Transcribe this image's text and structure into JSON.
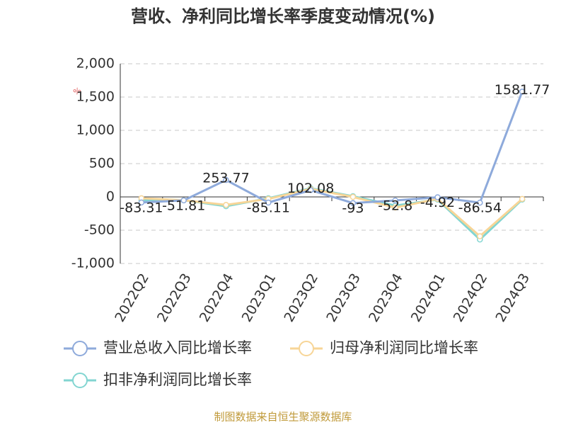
{
  "chart_data": {
    "type": "line",
    "title": "营收、净利同比增长率季度变动情况(%)",
    "y_unit": "%",
    "source": "制图数据来自恒生聚源数据库",
    "categories": [
      "2022Q2",
      "2022Q3",
      "2022Q4",
      "2023Q1",
      "2023Q2",
      "2023Q3",
      "2023Q4",
      "2024Q1",
      "2024Q2",
      "2024Q3"
    ],
    "series": [
      {
        "name": "营业总收入同比增长率",
        "color": "#8eaadb",
        "values": [
          -83.31,
          -51.81,
          253.77,
          -85.11,
          102.08,
          -93,
          -52.8,
          -4.92,
          -86.54,
          1581.77
        ]
      },
      {
        "name": "归母净利润同比增长率",
        "color": "#f7d597",
        "values": [
          -20,
          -50,
          -120,
          -30,
          120,
          0,
          -160,
          -30,
          -590,
          -30
        ]
      },
      {
        "name": "扣非净利润同比增长率",
        "color": "#82d5d1",
        "values": [
          -50,
          -50,
          -140,
          -20,
          130,
          10,
          -130,
          -40,
          -640,
          -40
        ]
      }
    ],
    "ylim": [
      -1000,
      2000
    ],
    "yticks": [
      {
        "value": 2000,
        "label": "2,000"
      },
      {
        "value": 1500,
        "label": "1,500"
      },
      {
        "value": 1000,
        "label": "1,000"
      },
      500,
      0,
      -500,
      {
        "value": -1000,
        "label": "-1,000"
      }
    ],
    "grid": true
  }
}
